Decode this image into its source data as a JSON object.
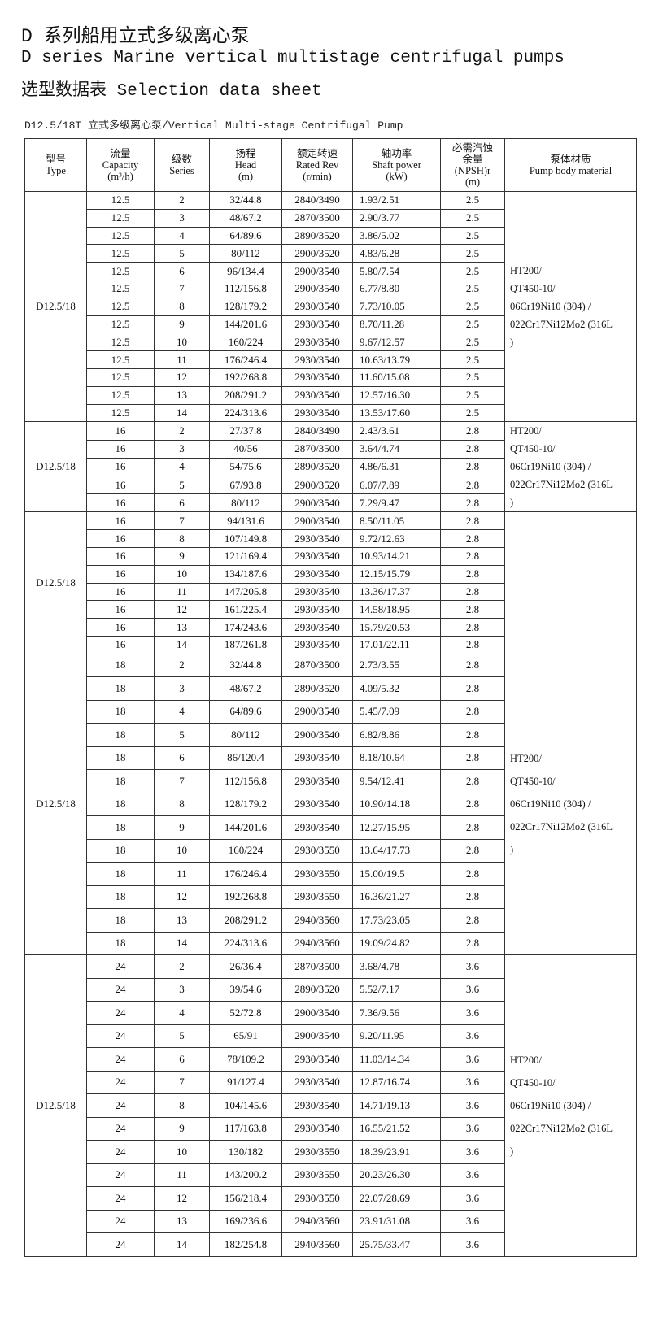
{
  "title": {
    "line1": "D 系列船用立式多级离心泵",
    "line2": "D series Marine vertical multistage centrifugal pumps",
    "line3": "选型数据表 Selection data sheet"
  },
  "subtitle": "D12.5/18T 立式多级离心泵/Vertical Multi-stage Centrifugal Pump",
  "table": {
    "headers": [
      [
        "型号",
        "Type"
      ],
      [
        "流量",
        "Capacity",
        "(m³/h)"
      ],
      [
        "级数",
        "Series"
      ],
      [
        "扬程",
        "Head",
        "(m)"
      ],
      [
        "额定转速",
        "Rated Rev",
        "(r/min)"
      ],
      [
        "轴功率",
        "Shaft power",
        "(kW)"
      ],
      [
        "必需汽蚀",
        "余量",
        "(NPSH)r",
        "(m)"
      ],
      [
        "泵体材质",
        "Pump body material"
      ]
    ],
    "sections": [
      {
        "type": "D12.5/18",
        "material": [
          "HT200/",
          "QT450-10/",
          "06Cr19Ni10 (304) /",
          "022Cr17Ni12Mo2 (316L",
          ")"
        ],
        "rows": [
          [
            "12.5",
            "2",
            "32/44.8",
            "2840/3490",
            "1.93/2.51",
            "2.5"
          ],
          [
            "12.5",
            "3",
            "48/67.2",
            "2870/3500",
            "2.90/3.77",
            "2.5"
          ],
          [
            "12.5",
            "4",
            "64/89.6",
            "2890/3520",
            "3.86/5.02",
            "2.5"
          ],
          [
            "12.5",
            "5",
            "80/112",
            "2900/3520",
            "4.83/6.28",
            "2.5"
          ],
          [
            "12.5",
            "6",
            "96/134.4",
            "2900/3540",
            "5.80/7.54",
            "2.5"
          ],
          [
            "12.5",
            "7",
            "112/156.8",
            "2900/3540",
            "6.77/8.80",
            "2.5"
          ],
          [
            "12.5",
            "8",
            "128/179.2",
            "2930/3540",
            "7.73/10.05",
            "2.5"
          ],
          [
            "12.5",
            "9",
            "144/201.6",
            "2930/3540",
            "8.70/11.28",
            "2.5"
          ],
          [
            "12.5",
            "10",
            "160/224",
            "2930/3540",
            "9.67/12.57",
            "2.5"
          ],
          [
            "12.5",
            "11",
            "176/246.4",
            "2930/3540",
            "10.63/13.79",
            "2.5"
          ],
          [
            "12.5",
            "12",
            "192/268.8",
            "2930/3540",
            "11.60/15.08",
            "2.5"
          ],
          [
            "12.5",
            "13",
            "208/291.2",
            "2930/3540",
            "12.57/16.30",
            "2.5"
          ],
          [
            "12.5",
            "14",
            "224/313.6",
            "2930/3540",
            "13.53/17.60",
            "2.5"
          ]
        ]
      },
      {
        "type": "D12.5/18",
        "material": [
          "HT200/",
          "QT450-10/",
          "06Cr19Ni10 (304) /",
          "022Cr17Ni12Mo2 (316L",
          ")"
        ],
        "rows": [
          [
            "16",
            "2",
            "27/37.8",
            "2840/3490",
            "2.43/3.61",
            "2.8"
          ],
          [
            "16",
            "3",
            "40/56",
            "2870/3500",
            "3.64/4.74",
            "2.8"
          ],
          [
            "16",
            "4",
            "54/75.6",
            "2890/3520",
            "4.86/6.31",
            "2.8"
          ],
          [
            "16",
            "5",
            "67/93.8",
            "2900/3520",
            "6.07/7.89",
            "2.8"
          ],
          [
            "16",
            "6",
            "80/112",
            "2900/3540",
            "7.29/9.47",
            "2.8"
          ]
        ]
      },
      {
        "type": "D12.5/18",
        "material": [],
        "rows": [
          [
            "16",
            "7",
            "94/131.6",
            "2900/3540",
            "8.50/11.05",
            "2.8"
          ],
          [
            "16",
            "8",
            "107/149.8",
            "2930/3540",
            "9.72/12.63",
            "2.8"
          ],
          [
            "16",
            "9",
            "121/169.4",
            "2930/3540",
            "10.93/14.21",
            "2.8"
          ],
          [
            "16",
            "10",
            "134/187.6",
            "2930/3540",
            "12.15/15.79",
            "2.8"
          ],
          [
            "16",
            "11",
            "147/205.8",
            "2930/3540",
            "13.36/17.37",
            "2.8"
          ],
          [
            "16",
            "12",
            "161/225.4",
            "2930/3540",
            "14.58/18.95",
            "2.8"
          ],
          [
            "16",
            "13",
            "174/243.6",
            "2930/3540",
            "15.79/20.53",
            "2.8"
          ],
          [
            "16",
            "14",
            "187/261.8",
            "2930/3540",
            "17.01/22.11",
            "2.8"
          ]
        ]
      },
      {
        "type": "D12.5/18",
        "material": [
          "HT200/",
          "QT450-10/",
          "06Cr19Ni10 (304) /",
          "022Cr17Ni12Mo2 (316L",
          ")"
        ],
        "rows": [
          [
            "18",
            "2",
            "32/44.8",
            "2870/3500",
            "2.73/3.55",
            "2.8"
          ],
          [
            "18",
            "3",
            "48/67.2",
            "2890/3520",
            "4.09/5.32",
            "2.8"
          ],
          [
            "18",
            "4",
            "64/89.6",
            "2900/3540",
            "5.45/7.09",
            "2.8"
          ],
          [
            "18",
            "5",
            "80/112",
            "2900/3540",
            "6.82/8.86",
            "2.8"
          ],
          [
            "18",
            "6",
            "86/120.4",
            "2930/3540",
            "8.18/10.64",
            "2.8"
          ],
          [
            "18",
            "7",
            "112/156.8",
            "2930/3540",
            "9.54/12.41",
            "2.8"
          ],
          [
            "18",
            "8",
            "128/179.2",
            "2930/3540",
            "10.90/14.18",
            "2.8"
          ],
          [
            "18",
            "9",
            "144/201.6",
            "2930/3540",
            "12.27/15.95",
            "2.8"
          ],
          [
            "18",
            "10",
            "160/224",
            "2930/3550",
            "13.64/17.73",
            "2.8"
          ],
          [
            "18",
            "11",
            "176/246.4",
            "2930/3550",
            "15.00/19.5",
            "2.8"
          ],
          [
            "18",
            "12",
            "192/268.8",
            "2930/3550",
            "16.36/21.27",
            "2.8"
          ],
          [
            "18",
            "13",
            "208/291.2",
            "2940/3560",
            "17.73/23.05",
            "2.8"
          ],
          [
            "18",
            "14",
            "224/313.6",
            "2940/3560",
            "19.09/24.82",
            "2.8"
          ]
        ]
      },
      {
        "type": "D12.5/18",
        "material": [
          "HT200/",
          "QT450-10/",
          "06Cr19Ni10 (304) /",
          "022Cr17Ni12Mo2 (316L",
          ")"
        ],
        "rows": [
          [
            "24",
            "2",
            "26/36.4",
            "2870/3500",
            "3.68/4.78",
            "3.6"
          ],
          [
            "24",
            "3",
            "39/54.6",
            "2890/3520",
            "5.52/7.17",
            "3.6"
          ],
          [
            "24",
            "4",
            "52/72.8",
            "2900/3540",
            "7.36/9.56",
            "3.6"
          ],
          [
            "24",
            "5",
            "65/91",
            "2900/3540",
            "9.20/11.95",
            "3.6"
          ],
          [
            "24",
            "6",
            "78/109.2",
            "2930/3540",
            "11.03/14.34",
            "3.6"
          ],
          [
            "24",
            "7",
            "91/127.4",
            "2930/3540",
            "12.87/16.74",
            "3.6"
          ],
          [
            "24",
            "8",
            "104/145.6",
            "2930/3540",
            "14.71/19.13",
            "3.6"
          ],
          [
            "24",
            "9",
            "117/163.8",
            "2930/3540",
            "16.55/21.52",
            "3.6"
          ],
          [
            "24",
            "10",
            "130/182",
            "2930/3550",
            "18.39/23.91",
            "3.6"
          ],
          [
            "24",
            "11",
            "143/200.2",
            "2930/3550",
            "20.23/26.30",
            "3.6"
          ],
          [
            "24",
            "12",
            "156/218.4",
            "2930/3550",
            "22.07/28.69",
            "3.6"
          ],
          [
            "24",
            "13",
            "169/236.6",
            "2940/3560",
            "23.91/31.08",
            "3.6"
          ],
          [
            "24",
            "14",
            "182/254.8",
            "2940/3560",
            "25.75/33.47",
            "3.6"
          ]
        ]
      }
    ]
  }
}
